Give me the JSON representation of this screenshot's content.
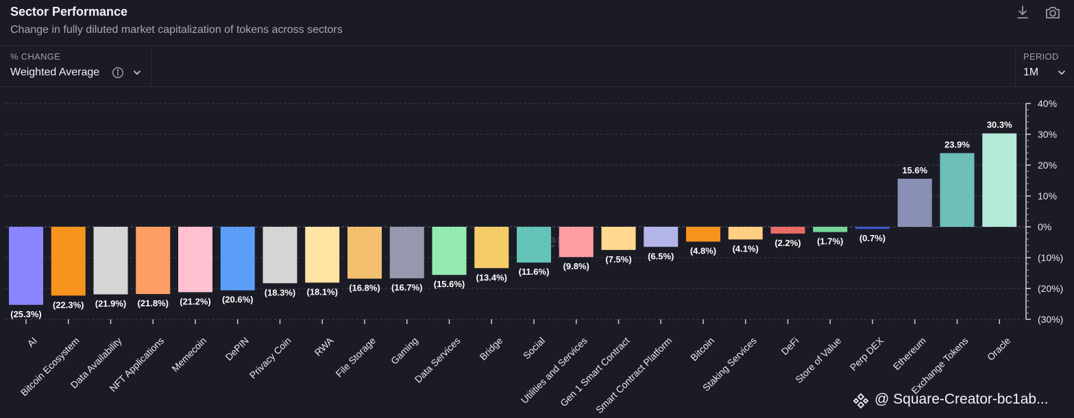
{
  "header": {
    "title": "Sector Performance",
    "subtitle": "Change in fully diluted market capitalization of tokens across sectors",
    "download_icon": "download-icon",
    "camera_icon": "camera-icon"
  },
  "controls": {
    "metric_label": "% CHANGE",
    "metric_value": "Weighted Average",
    "period_label": "PERIOD",
    "period_value": "1M"
  },
  "watermark": {
    "text": "@ Square-Creator-bc1ab...",
    "center_text": "Artemis"
  },
  "colors": {
    "background": "#1b1b26",
    "grid": "#4a4a58",
    "text": "#f0f0f4"
  },
  "chart_data": {
    "type": "bar",
    "categories": [
      "AI",
      "Bitcoin Ecosystem",
      "Data Availability",
      "NFT Applications",
      "Memecoin",
      "DePIN",
      "Privacy Coin",
      "RWA",
      "File Storage",
      "Gaming",
      "Data Services",
      "Bridge",
      "Social",
      "Utilities and Services",
      "Gen 1 Smart Contract",
      "Smart Contract Platform",
      "Bitcoin",
      "Staking Services",
      "DeFi",
      "Store of Value",
      "Perp DEX",
      "Ethereum",
      "Exchange Tokens",
      "Oracle"
    ],
    "values": [
      -25.3,
      -22.3,
      -21.9,
      -21.8,
      -21.2,
      -20.6,
      -18.3,
      -18.1,
      -16.8,
      -16.7,
      -15.6,
      -13.4,
      -11.6,
      -9.8,
      -7.5,
      -6.5,
      -4.8,
      -4.1,
      -2.2,
      -1.7,
      -0.7,
      15.6,
      23.9,
      30.3
    ],
    "data_labels": [
      "(25.3%)",
      "(22.3%)",
      "(21.9%)",
      "(21.8%)",
      "(21.2%)",
      "(20.6%)",
      "(18.3%)",
      "(18.1%)",
      "(16.8%)",
      "(16.7%)",
      "(15.6%)",
      "(13.4%)",
      "(11.6%)",
      "(9.8%)",
      "(7.5%)",
      "(6.5%)",
      "(4.8%)",
      "(4.1%)",
      "(2.2%)",
      "(1.7%)",
      "(0.7%)",
      "15.6%",
      "23.9%",
      "30.3%"
    ],
    "colors": [
      "#8a86ff",
      "#f7941d",
      "#d6d6d6",
      "#ff9e63",
      "#ffc0cf",
      "#5b9ef7",
      "#d5d5d5",
      "#ffe3a3",
      "#f3c070",
      "#9798ad",
      "#93ebb0",
      "#f5cd68",
      "#63c4b7",
      "#ff9ea0",
      "#ffd98f",
      "#b3b4e8",
      "#f7921e",
      "#ffcf82",
      "#ea6a66",
      "#76d69a",
      "#3e57c8",
      "#8a90b5",
      "#6cc0b8",
      "#b4ead8"
    ],
    "ylim": [
      -30,
      40
    ],
    "yticks": [
      40,
      30,
      20,
      10,
      0,
      -10,
      -20,
      -30
    ],
    "ytick_labels": [
      "40%",
      "30%",
      "20%",
      "10%",
      "0%",
      "(10%)",
      "(20%)",
      "(30%)"
    ],
    "grid": true
  }
}
